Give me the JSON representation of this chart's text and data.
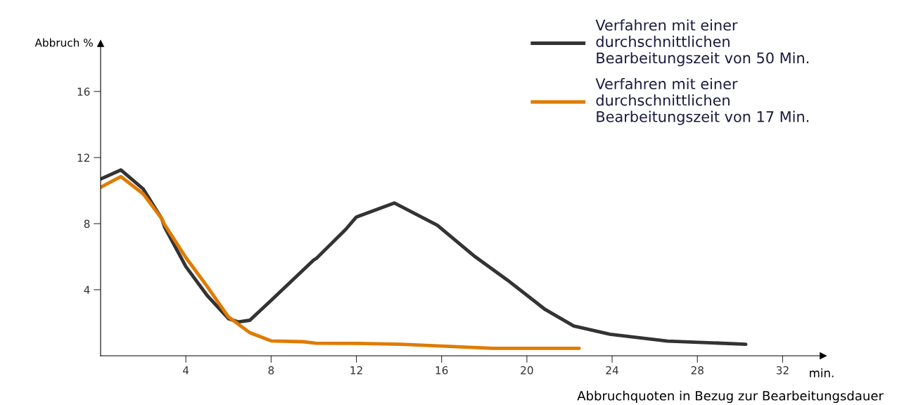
{
  "chart_data": {
    "type": "line",
    "xlabel": "min.",
    "ylabel": "Abbruch %",
    "xlim": [
      0,
      33.9
    ],
    "ylim": [
      0,
      18.9
    ],
    "xticks": [
      4,
      8,
      12,
      16,
      20,
      24,
      28,
      32
    ],
    "yticks": [
      4,
      8,
      12,
      16
    ],
    "grid": false,
    "legend": "top right",
    "marker": "none",
    "line_style": "solid",
    "annotations": [
      "Abbruchquoten in Bezug zur Bearbeitungsdauer"
    ],
    "series": [
      {
        "name": "Verfahren mit einer\ndurchschnittlichen\nBearbeitungszeit von 50 Min.",
        "color": "#333333",
        "x": [
          0,
          0.95,
          2,
          2.87,
          3,
          4,
          5,
          6,
          6.45,
          7,
          8,
          10,
          10.13,
          11.5,
          12,
          13.78,
          15.8,
          17.57,
          19.07,
          20.86,
          22.2,
          23.9,
          26.6,
          30.27
        ],
        "values": [
          10.7,
          11.25,
          10.1,
          8.3,
          7.8,
          5.4,
          3.65,
          2.25,
          2.05,
          2.15,
          3.35,
          5.8,
          5.9,
          7.65,
          8.4,
          9.25,
          7.9,
          6.0,
          4.6,
          2.8,
          1.8,
          1.3,
          0.89,
          0.7
        ]
      },
      {
        "name": "Verfahren mit einer\ndurchschnittlichen\nBearbeitungszeit von 17 Min.",
        "color": "#e07b00",
        "x": [
          0,
          0.95,
          2,
          2.87,
          3,
          4,
          5,
          6,
          7,
          8,
          9.5,
          10.1,
          12,
          14.1,
          18.4,
          22.45
        ],
        "values": [
          10.2,
          10.85,
          9.8,
          8.3,
          7.95,
          5.95,
          4.2,
          2.35,
          1.4,
          0.9,
          0.85,
          0.76,
          0.75,
          0.7,
          0.45,
          0.45
        ]
      }
    ]
  }
}
